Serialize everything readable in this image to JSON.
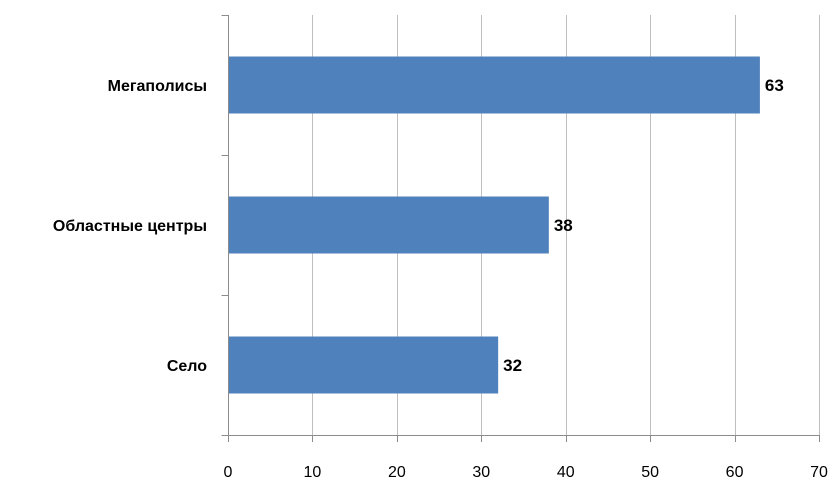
{
  "chart_data": {
    "type": "bar",
    "orientation": "horizontal",
    "categories": [
      "Мегаполисы",
      "Областные центры",
      "Село"
    ],
    "values": [
      63,
      38,
      32
    ],
    "xlim": [
      0,
      70
    ],
    "x_ticks": [
      0,
      10,
      20,
      30,
      40,
      50,
      60,
      70
    ],
    "title": "",
    "xlabel": "",
    "ylabel": "",
    "grid": "vertical",
    "legend": "none",
    "bar_color": "#4F81BD",
    "grid_color": "#BFBFBF",
    "axis_color": "#8C8C8C",
    "text_color": "#000000"
  }
}
